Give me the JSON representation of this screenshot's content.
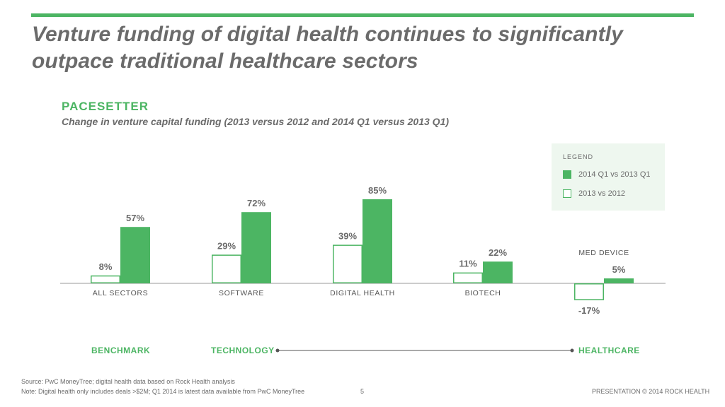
{
  "title": "Venture funding of digital health continues to significantly outpace traditional healthcare sectors",
  "kicker": "PACESETTER",
  "subtitle": "Change in venture capital funding (2013 versus 2012 and 2014 Q1 versus 2013 Q1)",
  "legend": {
    "title": "LEGEND",
    "filled_label": "2014 Q1 vs 2013 Q1",
    "outline_label": "2013 vs 2012"
  },
  "groups": {
    "benchmark": "BENCHMARK",
    "technology": "TECHNOLOGY",
    "healthcare": "HEALTHCARE"
  },
  "footer": {
    "source": "Source: PwC MoneyTree; digital health data based on Rock Health analysis",
    "note": "Note: Digital health only includes deals >$2M; Q1 2014 is latest data available from PwC MoneyTree",
    "page_number": "5",
    "credit": "PRESENTATION © 2014 ROCK HEALTH"
  },
  "colors": {
    "accent": "#4cb563",
    "text": "#6b6b6b",
    "legend_bg": "#eef7ef"
  },
  "chart_data": {
    "type": "bar",
    "categories": [
      "ALL SECTORS",
      "SOFTWARE",
      "DIGITAL HEALTH",
      "BIOTECH",
      "MED DEVICE"
    ],
    "series": [
      {
        "name": "2013 vs 2012",
        "style": "outline",
        "values": [
          8,
          29,
          39,
          11,
          -17
        ],
        "labels": [
          "8%",
          "29%",
          "39%",
          "11%",
          "-17%"
        ]
      },
      {
        "name": "2014 Q1 vs 2013 Q1",
        "style": "filled",
        "values": [
          57,
          72,
          85,
          22,
          5
        ],
        "labels": [
          "57%",
          "72%",
          "85%",
          "22%",
          "5%"
        ]
      }
    ],
    "title": "PACESETTER",
    "subtitle": "Change in venture capital funding (2013 versus 2012 and 2014 Q1 versus 2013 Q1)",
    "grid": false,
    "legend_position": "top-right"
  }
}
